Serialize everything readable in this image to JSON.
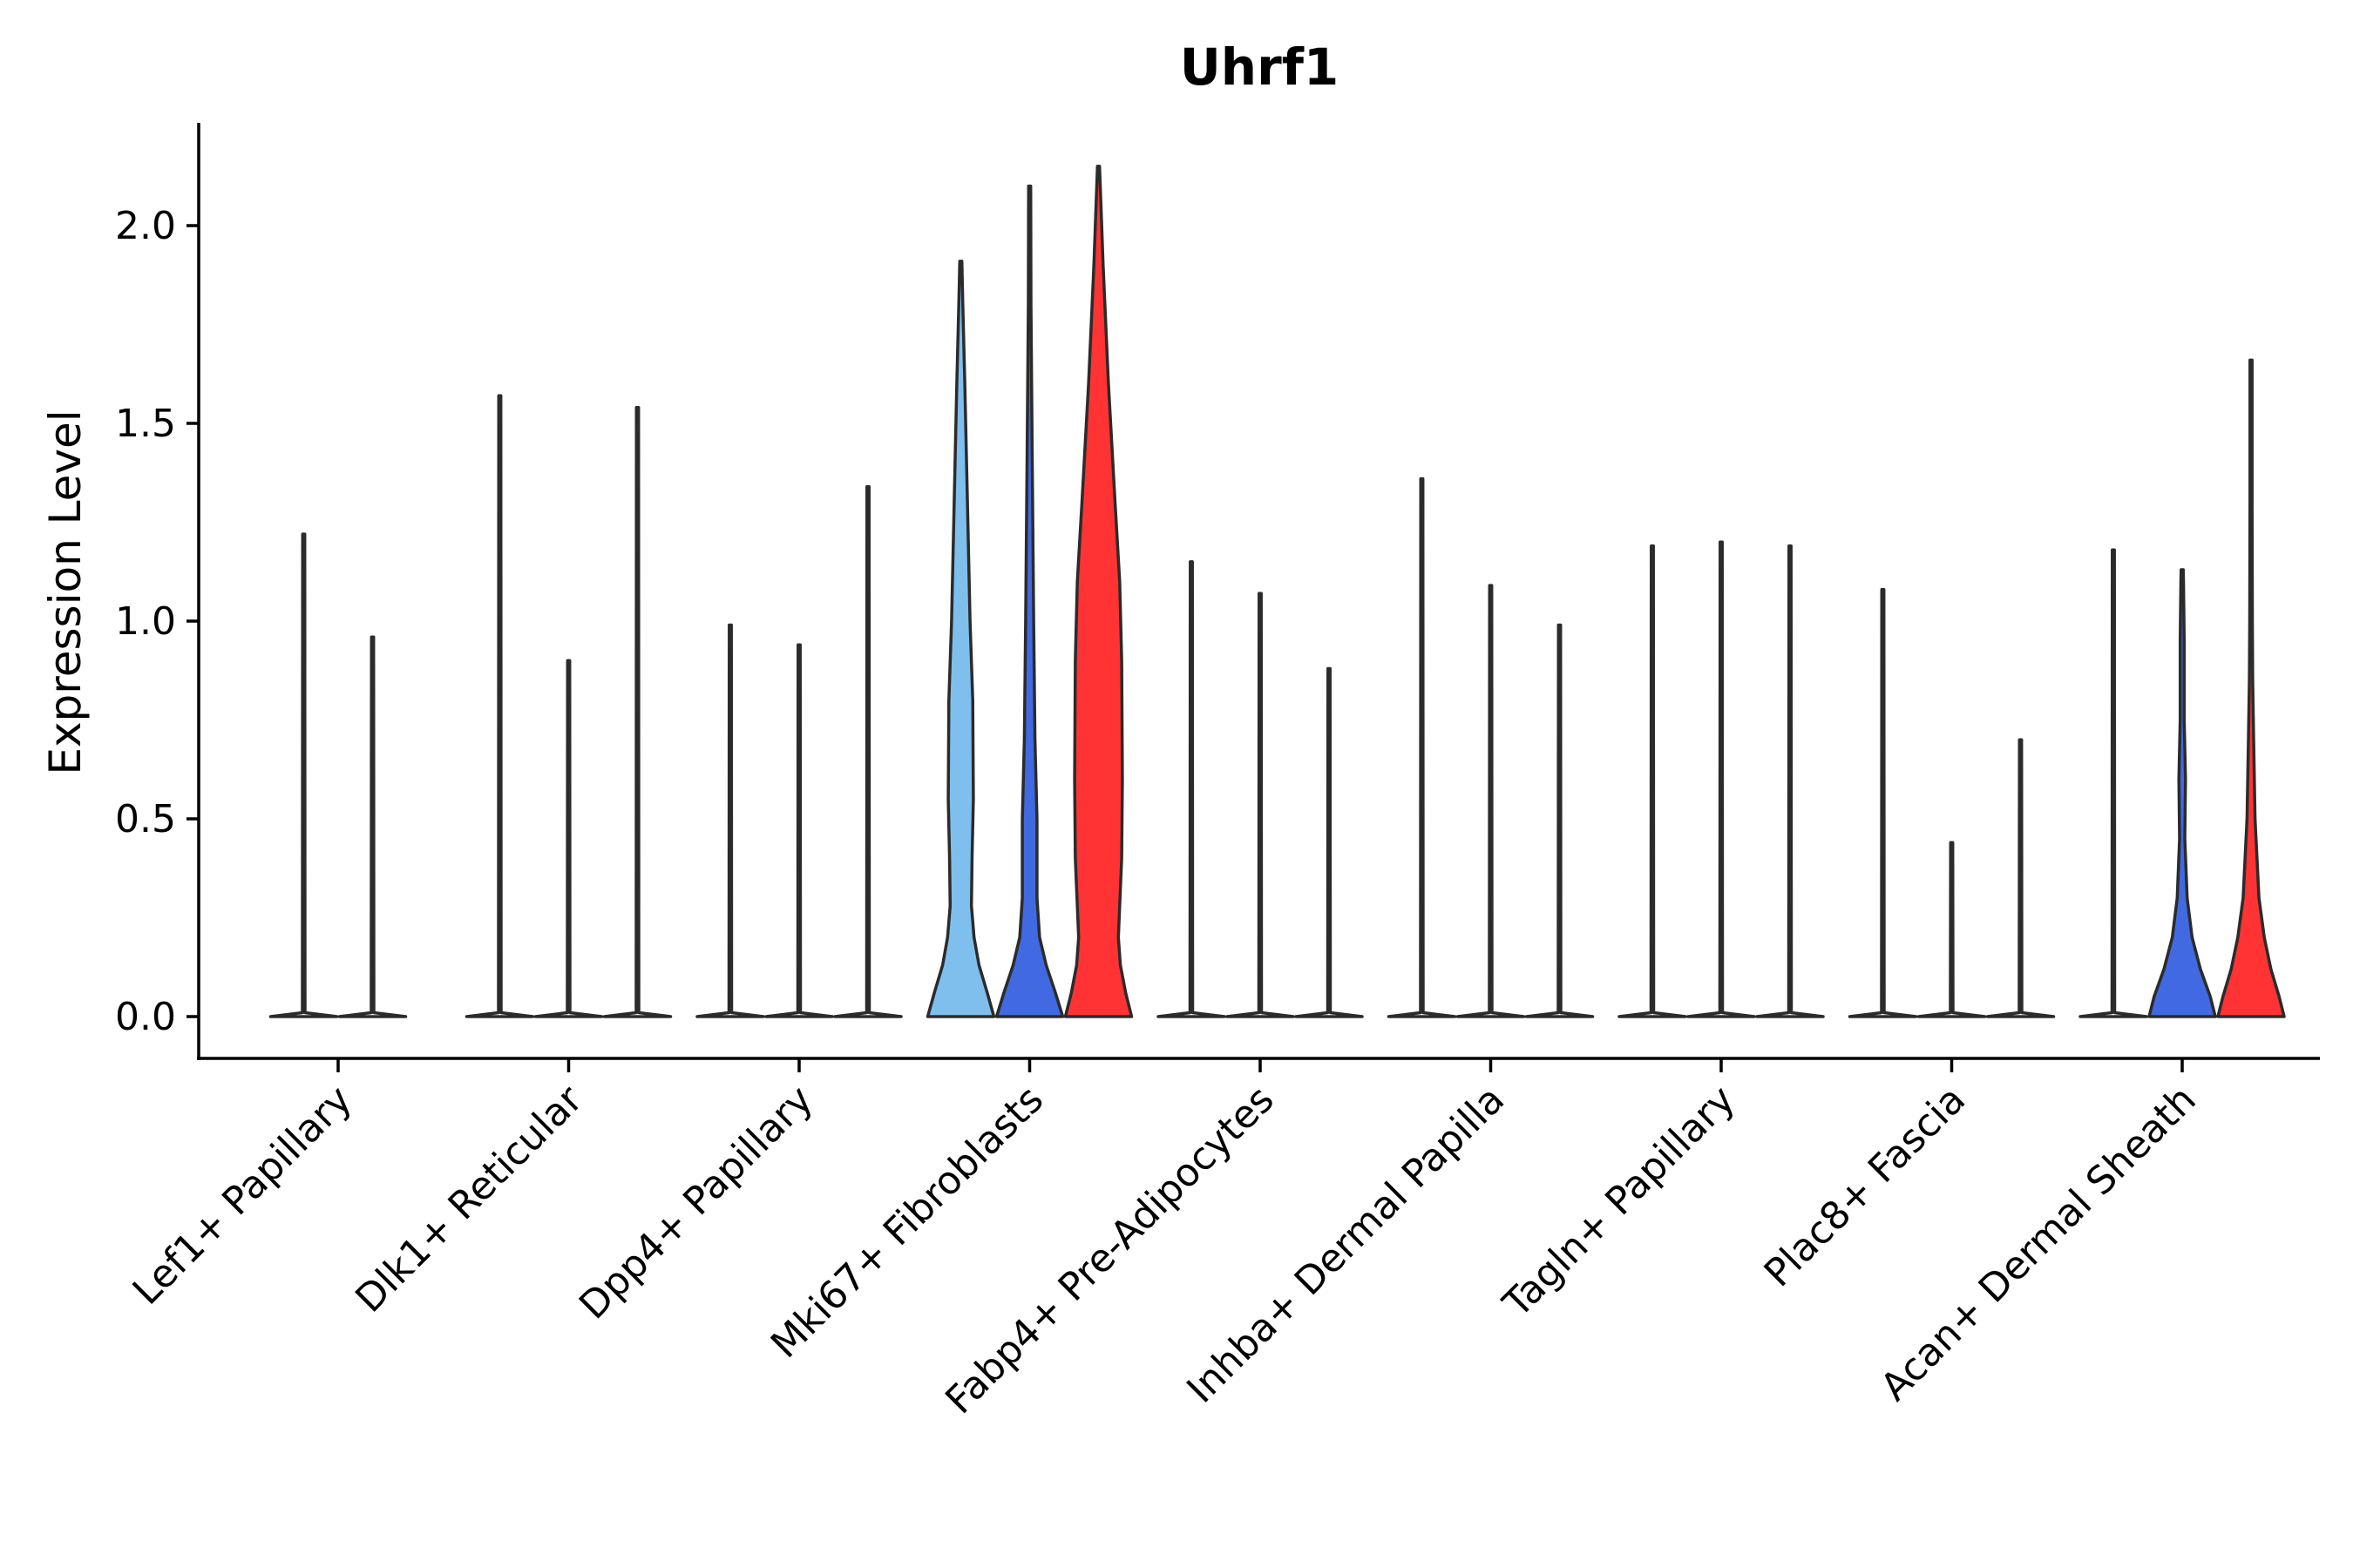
{
  "chart_data": {
    "type": "violin",
    "title": "Uhrf1",
    "xlabel": "",
    "ylabel": "Expression Level",
    "ylim": [
      -0.1,
      2.25
    ],
    "yticks": [
      0.0,
      0.5,
      1.0,
      1.5,
      2.0
    ],
    "ytick_labels": [
      "0.0",
      "0.5",
      "1.0",
      "1.5",
      "2.0"
    ],
    "grid": false,
    "legend": "none",
    "categories": [
      "Lef1+ Papillary",
      "Dlk1+ Reticular",
      "Dpp4+ Papillary",
      "Mki67+ Fibroblasts",
      "Fabp4+ Pre-Adipocytes",
      "Inhba+ Dermal Papilla",
      "Tagln+ Papillary",
      "Plac8+ Fascia",
      "Acan+ Dermal Sheath"
    ],
    "groups": [
      {
        "category": "Lef1+ Papillary",
        "violins": [
          {
            "max": 1.22,
            "color": "#ffffff",
            "profile": []
          },
          {
            "max": 0.96,
            "color": "#ffffff",
            "profile": []
          }
        ]
      },
      {
        "category": "Dlk1+ Reticular",
        "violins": [
          {
            "max": 1.57,
            "color": "#ffffff",
            "profile": []
          },
          {
            "max": 0.9,
            "color": "#ffffff",
            "profile": []
          },
          {
            "max": 1.54,
            "color": "#ffffff",
            "profile": []
          }
        ]
      },
      {
        "category": "Dpp4+ Papillary",
        "violins": [
          {
            "max": 0.99,
            "color": "#ffffff",
            "profile": []
          },
          {
            "max": 0.94,
            "color": "#ffffff",
            "profile": []
          },
          {
            "max": 1.34,
            "color": "#ffffff",
            "profile": []
          }
        ]
      },
      {
        "category": "Mki67+ Fibroblasts",
        "violins": [
          {
            "max": 1.91,
            "color": "#7fbfee",
            "profile": [
              [
                0.0,
                1.0
              ],
              [
                0.06,
                0.8
              ],
              [
                0.13,
                0.55
              ],
              [
                0.2,
                0.4
              ],
              [
                0.28,
                0.32
              ],
              [
                0.4,
                0.34
              ],
              [
                0.55,
                0.38
              ],
              [
                0.8,
                0.36
              ],
              [
                1.0,
                0.28
              ],
              [
                1.3,
                0.2
              ],
              [
                1.6,
                0.12
              ],
              [
                1.8,
                0.06
              ],
              [
                1.91,
                0.0
              ]
            ]
          },
          {
            "max": 2.1,
            "color": "#4169e1",
            "profile": [
              [
                0.0,
                1.0
              ],
              [
                0.06,
                0.78
              ],
              [
                0.13,
                0.5
              ],
              [
                0.2,
                0.3
              ],
              [
                0.3,
                0.22
              ],
              [
                0.5,
                0.22
              ],
              [
                0.7,
                0.16
              ],
              [
                1.0,
                0.12
              ],
              [
                1.4,
                0.08
              ],
              [
                1.8,
                0.04
              ],
              [
                2.1,
                0.0
              ]
            ]
          },
          {
            "max": 2.15,
            "color": "#ff3333",
            "profile": [
              [
                0.0,
                1.0
              ],
              [
                0.06,
                0.82
              ],
              [
                0.13,
                0.66
              ],
              [
                0.2,
                0.6
              ],
              [
                0.28,
                0.64
              ],
              [
                0.4,
                0.7
              ],
              [
                0.6,
                0.72
              ],
              [
                0.9,
                0.7
              ],
              [
                1.1,
                0.64
              ],
              [
                1.3,
                0.5
              ],
              [
                1.6,
                0.3
              ],
              [
                1.9,
                0.14
              ],
              [
                2.15,
                0.0
              ]
            ]
          }
        ]
      },
      {
        "category": "Fabp4+ Pre-Adipocytes",
        "violins": [
          {
            "max": 1.15,
            "color": "#ffffff",
            "profile": []
          },
          {
            "max": 1.07,
            "color": "#ffffff",
            "profile": []
          },
          {
            "max": 0.88,
            "color": "#ffffff",
            "profile": []
          }
        ]
      },
      {
        "category": "Inhba+ Dermal Papilla",
        "violins": [
          {
            "max": 1.36,
            "color": "#ffffff",
            "profile": []
          },
          {
            "max": 1.09,
            "color": "#ffffff",
            "profile": []
          },
          {
            "max": 0.99,
            "color": "#ffffff",
            "profile": []
          }
        ]
      },
      {
        "category": "Tagln+ Papillary",
        "violins": [
          {
            "max": 1.19,
            "color": "#ffffff",
            "profile": []
          },
          {
            "max": 1.2,
            "color": "#ffffff",
            "profile": []
          },
          {
            "max": 1.19,
            "color": "#ffffff",
            "profile": []
          }
        ]
      },
      {
        "category": "Plac8+ Fascia",
        "violins": [
          {
            "max": 1.08,
            "color": "#ffffff",
            "profile": []
          },
          {
            "max": 0.44,
            "color": "#ffffff",
            "profile": []
          },
          {
            "max": 0.7,
            "color": "#ffffff",
            "profile": []
          }
        ]
      },
      {
        "category": "Acan+ Dermal Sheath",
        "violins": [
          {
            "max": 1.18,
            "color": "#ffffff",
            "profile": []
          },
          {
            "max": 1.13,
            "color": "#4169e1",
            "profile": [
              [
                0.0,
                1.0
              ],
              [
                0.05,
                0.85
              ],
              [
                0.12,
                0.55
              ],
              [
                0.2,
                0.3
              ],
              [
                0.3,
                0.15
              ],
              [
                0.45,
                0.08
              ],
              [
                0.6,
                0.1
              ],
              [
                0.75,
                0.06
              ],
              [
                0.95,
                0.06
              ],
              [
                1.1,
                0.04
              ],
              [
                1.13,
                0.0
              ]
            ]
          },
          {
            "max": 1.66,
            "color": "#ff3333",
            "profile": [
              [
                0.0,
                1.0
              ],
              [
                0.05,
                0.85
              ],
              [
                0.12,
                0.6
              ],
              [
                0.2,
                0.4
              ],
              [
                0.3,
                0.24
              ],
              [
                0.5,
                0.12
              ],
              [
                0.7,
                0.08
              ],
              [
                0.85,
                0.05
              ],
              [
                1.0,
                0.04
              ],
              [
                1.3,
                0.02
              ],
              [
                1.66,
                0.0
              ]
            ]
          }
        ]
      }
    ]
  }
}
